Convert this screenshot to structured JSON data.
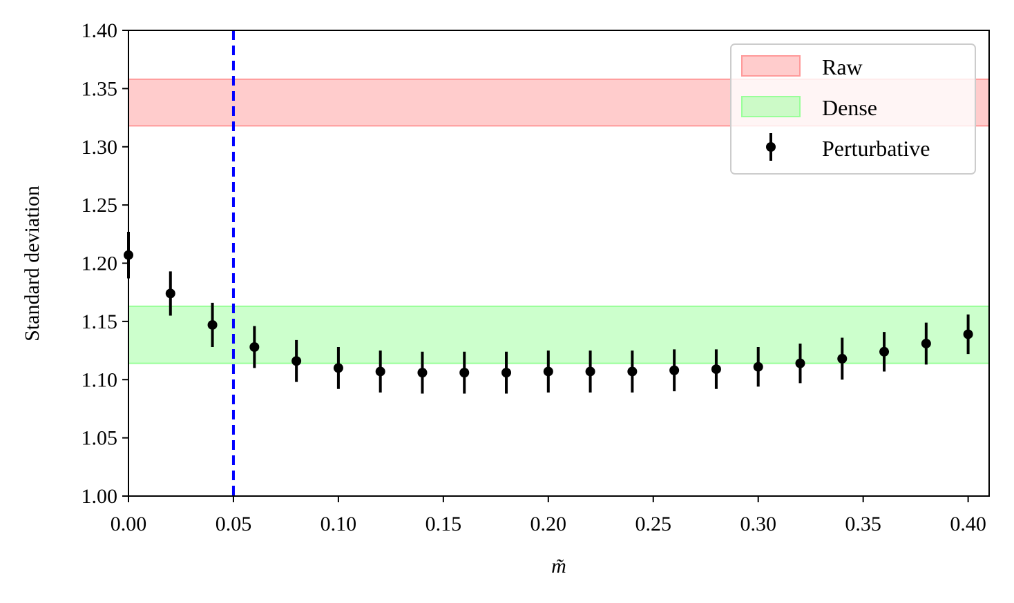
{
  "chart_data": {
    "type": "scatter",
    "title": "",
    "xlabel": "m̃",
    "ylabel": "Standard deviation",
    "xlim": [
      0.0,
      0.41
    ],
    "ylim": [
      1.0,
      1.4
    ],
    "x_ticks": [
      "0.00",
      "0.05",
      "0.10",
      "0.15",
      "0.20",
      "0.25",
      "0.30",
      "0.35",
      "0.40"
    ],
    "y_ticks": [
      "1.00",
      "1.05",
      "1.10",
      "1.15",
      "1.20",
      "1.25",
      "1.30",
      "1.35",
      "1.40"
    ],
    "grid": false,
    "legend_position": "top-right",
    "bands": [
      {
        "name": "Raw",
        "y_min": 1.318,
        "y_max": 1.358,
        "color": "#ff9999"
      },
      {
        "name": "Dense",
        "y_min": 1.114,
        "y_max": 1.163,
        "color": "#99ff99"
      }
    ],
    "vline": {
      "x": 0.05,
      "style": "dashed",
      "color": "#0000ff"
    },
    "series": [
      {
        "name": "Perturbative",
        "color": "#000000",
        "x": [
          0.0,
          0.02,
          0.04,
          0.06,
          0.08,
          0.1,
          0.12,
          0.14,
          0.16,
          0.18,
          0.2,
          0.22,
          0.24,
          0.26,
          0.28,
          0.3,
          0.32,
          0.34,
          0.36,
          0.38,
          0.4
        ],
        "y": [
          1.207,
          1.174,
          1.147,
          1.128,
          1.116,
          1.11,
          1.107,
          1.106,
          1.106,
          1.106,
          1.107,
          1.107,
          1.107,
          1.108,
          1.109,
          1.111,
          1.114,
          1.118,
          1.124,
          1.131,
          1.139
        ],
        "err": [
          0.02,
          0.019,
          0.019,
          0.018,
          0.018,
          0.018,
          0.018,
          0.018,
          0.018,
          0.018,
          0.018,
          0.018,
          0.018,
          0.018,
          0.017,
          0.017,
          0.017,
          0.018,
          0.017,
          0.018,
          0.017
        ]
      }
    ]
  }
}
